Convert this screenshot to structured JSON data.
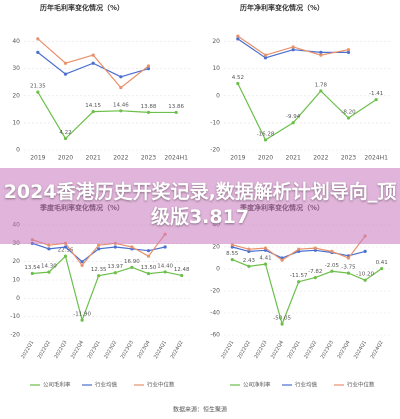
{
  "chart_data": [
    {
      "type": "line",
      "title": "历年毛利率变化情况（%）",
      "categories": [
        "2019",
        "2020",
        "2021",
        "2022",
        "2023",
        "2024H1"
      ],
      "ylim": [
        0,
        45
      ],
      "yticks": [
        0,
        10,
        20,
        30,
        40
      ],
      "grid": true,
      "series": [
        {
          "name": "公司毛利率",
          "color": "#6cbf4a",
          "values": [
            21.35,
            4.22,
            14.15,
            14.46,
            13.88,
            13.86
          ],
          "value_labels": [
            "21.35",
            "4.22",
            "14.15",
            "14.46",
            "13.88",
            "13.86"
          ]
        },
        {
          "name": "行业均值",
          "color": "#4a6fd1",
          "values": [
            36,
            28,
            32,
            27,
            30,
            null
          ]
        },
        {
          "name": "行业中位数",
          "color": "#e8916b",
          "values": [
            41,
            32,
            35,
            23,
            31,
            null
          ]
        }
      ]
    },
    {
      "type": "line",
      "title": "历年净利率变化情况（%）",
      "categories": [
        "2019",
        "2020",
        "2021",
        "2022",
        "2023",
        "2024H1"
      ],
      "ylim": [
        -20,
        25
      ],
      "yticks": [
        -20,
        -10,
        0,
        10,
        20
      ],
      "grid": true,
      "series": [
        {
          "name": "公司净利率",
          "color": "#6cbf4a",
          "values": [
            4.52,
            -16.28,
            -9.94,
            1.78,
            -8.2,
            -1.41
          ],
          "value_labels": [
            "4.52",
            "-16.28",
            "-9.94",
            "1.78",
            "-8.20",
            "-1.41"
          ]
        },
        {
          "name": "行业均值",
          "color": "#4a6fd1",
          "values": [
            21,
            14,
            17,
            16,
            16,
            null
          ]
        },
        {
          "name": "行业中位数",
          "color": "#e8916b",
          "values": [
            22,
            15,
            18,
            15,
            17,
            null
          ]
        }
      ]
    },
    {
      "type": "line",
      "title": "季度毛利率变化情况（%）",
      "categories": [
        "2022Q1",
        "2022Q2",
        "2022Q3",
        "2022Q4",
        "2023Q1",
        "2023Q2",
        "2023Q3",
        "2023Q4",
        "2024Q1",
        "2024Q2"
      ],
      "ylim": [
        -20,
        40
      ],
      "yticks": [
        -20,
        -10,
        0,
        10,
        20,
        30,
        40
      ],
      "grid": true,
      "legend": true,
      "series": [
        {
          "name": "公司毛利率",
          "color": "#6cbf4a",
          "values": [
            13.54,
            14.3,
            22.96,
            -11.9,
            12.35,
            13.97,
            16.9,
            13.5,
            14.4,
            12.48
          ],
          "value_labels": [
            "13.54",
            "14.30",
            "22.96",
            "-11.90",
            "12.35",
            "13.97",
            "16.90",
            "13.50",
            "14.40",
            "12.48"
          ]
        },
        {
          "name": "行业均值",
          "color": "#4a6fd1",
          "values": [
            30,
            27,
            28,
            20,
            27,
            28,
            27,
            26,
            28,
            null
          ]
        },
        {
          "name": "行业中位数",
          "color": "#e8916b",
          "values": [
            32,
            29,
            30,
            18,
            29,
            30,
            28,
            23,
            35,
            null
          ]
        }
      ]
    },
    {
      "type": "line",
      "title": "季度净利率变化情况（%）",
      "categories": [
        "2022Q1",
        "2022Q2",
        "2022Q3",
        "2022Q4",
        "2023Q1",
        "2023Q2",
        "2023Q3",
        "2023Q4",
        "2024Q1",
        "2024Q2"
      ],
      "ylim": [
        -60,
        40
      ],
      "yticks": [
        -60,
        -40,
        -20,
        0,
        20,
        40
      ],
      "grid": true,
      "legend": true,
      "series": [
        {
          "name": "公司净利率",
          "color": "#6cbf4a",
          "values": [
            8.55,
            2.43,
            4.41,
            -50.05,
            -11.57,
            -7.82,
            -2.05,
            -3.75,
            -10.2,
            0.41
          ],
          "value_labels": [
            "8.55",
            "2.43",
            "4.41",
            "-50.05",
            "-11.57",
            "-7.82",
            "-2.05",
            "-3.75",
            "-10.20",
            "0.41"
          ]
        },
        {
          "name": "行业均值",
          "color": "#4a6fd1",
          "values": [
            20,
            16,
            17,
            10,
            16,
            17,
            15,
            12,
            16,
            null
          ]
        },
        {
          "name": "行业中位数",
          "color": "#e8916b",
          "values": [
            22,
            18,
            19,
            8,
            18,
            19,
            16,
            10,
            30,
            null
          ]
        }
      ]
    }
  ],
  "banner": "2024香港历史开奖记录,数据解析计划导向_顶级版3.817",
  "source": "数据来源：恒生聚源"
}
